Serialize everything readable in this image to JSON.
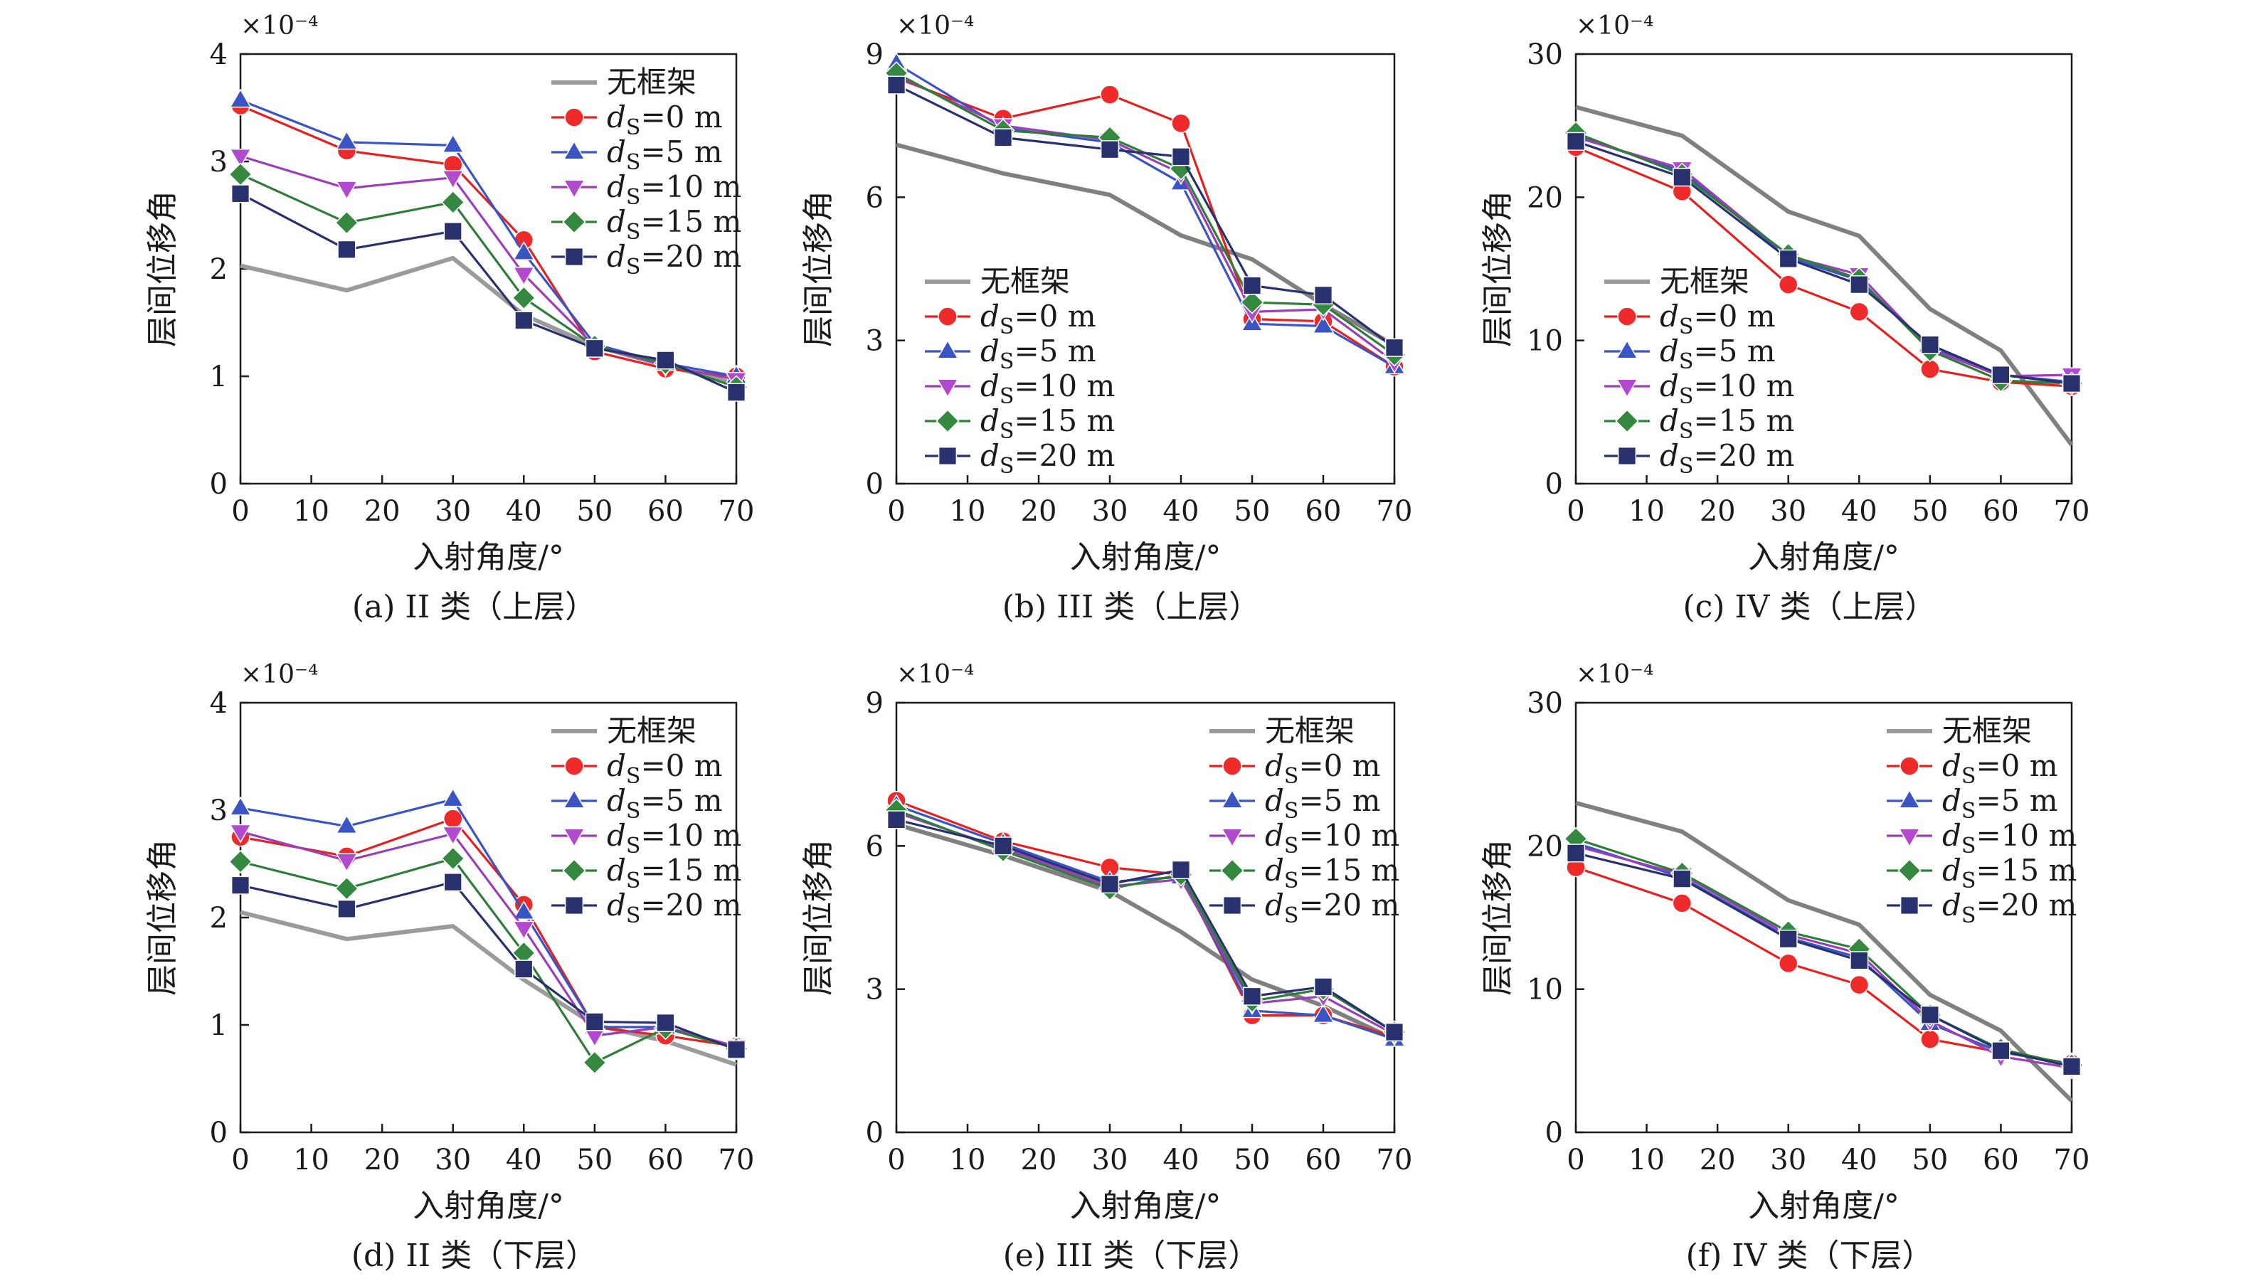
{
  "figure": {
    "xlabel": "入射角度/°",
    "ylabel": "层间位移角",
    "exponent": "×10⁻⁴",
    "legend_labels": [
      "无框架",
      "d_S=0 m",
      "d_S=5 m",
      "d_S=10 m",
      "d_S=15 m",
      "d_S=20 m"
    ]
  },
  "chart_data": [
    {
      "type": "line",
      "caption": "(a)  II 类（上层）",
      "xlabel": "入射角度/°",
      "ylabel": "层间位移角",
      "exponent": "×10⁻⁴",
      "x": [
        0,
        15,
        30,
        40,
        50,
        60,
        70
      ],
      "xlim": [
        0,
        70
      ],
      "xticks": [
        0,
        10,
        20,
        30,
        40,
        50,
        60,
        70
      ],
      "ylim": [
        0,
        4
      ],
      "yticks": [
        0,
        1,
        2,
        3,
        4
      ],
      "legend_position": "top-right",
      "grid": false,
      "series": [
        {
          "name": "无框架",
          "values": [
            2.03,
            1.8,
            2.1,
            1.57,
            1.28,
            1.1,
            0.93
          ]
        },
        {
          "name": "d_S=0 m",
          "values": [
            3.52,
            3.1,
            2.97,
            2.27,
            1.23,
            1.07,
            1.0
          ]
        },
        {
          "name": "d_S=5 m",
          "values": [
            3.57,
            3.18,
            3.15,
            2.15,
            1.3,
            1.12,
            1.0
          ]
        },
        {
          "name": "d_S=10 m",
          "values": [
            3.05,
            2.75,
            2.85,
            1.95,
            1.28,
            1.1,
            0.97
          ]
        },
        {
          "name": "d_S=15 m",
          "values": [
            2.88,
            2.43,
            2.62,
            1.73,
            1.28,
            1.12,
            0.9
          ]
        },
        {
          "name": "d_S=20 m",
          "values": [
            2.7,
            2.18,
            2.35,
            1.52,
            1.26,
            1.15,
            0.85
          ]
        }
      ]
    },
    {
      "type": "line",
      "caption": "(b)  III 类（上层）",
      "xlabel": "入射角度/°",
      "ylabel": "层间位移角",
      "exponent": "×10⁻⁴",
      "x": [
        0,
        15,
        30,
        40,
        50,
        60,
        70
      ],
      "xlim": [
        0,
        70
      ],
      "xticks": [
        0,
        10,
        20,
        30,
        40,
        50,
        60,
        70
      ],
      "ylim": [
        0,
        9
      ],
      "yticks": [
        0,
        3,
        6,
        9
      ],
      "legend_position": "center-left",
      "grid": false,
      "series": [
        {
          "name": "无框架",
          "values": [
            7.1,
            6.5,
            6.05,
            5.2,
            4.7,
            3.75,
            2.9
          ]
        },
        {
          "name": "d_S=0 m",
          "values": [
            8.5,
            7.65,
            8.15,
            7.55,
            3.45,
            3.4,
            2.45
          ]
        },
        {
          "name": "d_S=5 m",
          "values": [
            8.8,
            7.45,
            7.15,
            6.3,
            3.35,
            3.3,
            2.45
          ]
        },
        {
          "name": "d_S=10 m",
          "values": [
            8.55,
            7.5,
            7.2,
            6.5,
            3.6,
            3.65,
            2.55
          ]
        },
        {
          "name": "d_S=15 m",
          "values": [
            8.6,
            7.4,
            7.25,
            6.6,
            3.8,
            3.75,
            2.7
          ]
        },
        {
          "name": "d_S=20 m",
          "values": [
            8.35,
            7.25,
            7.0,
            6.85,
            4.15,
            3.95,
            2.85
          ]
        }
      ]
    },
    {
      "type": "line",
      "caption": "(c)  IV 类（上层）",
      "xlabel": "入射角度/°",
      "ylabel": "层间位移角",
      "exponent": "×10⁻⁴",
      "x": [
        0,
        15,
        30,
        40,
        50,
        60,
        70
      ],
      "xlim": [
        0,
        70
      ],
      "xticks": [
        0,
        10,
        20,
        30,
        40,
        50,
        60,
        70
      ],
      "ylim": [
        0,
        30
      ],
      "yticks": [
        0,
        10,
        20,
        30
      ],
      "legend_position": "center-left",
      "grid": false,
      "series": [
        {
          "name": "无框架",
          "values": [
            26.3,
            24.3,
            19.0,
            17.3,
            12.2,
            9.3,
            2.7
          ]
        },
        {
          "name": "d_S=0 m",
          "values": [
            23.5,
            20.4,
            13.9,
            12.0,
            8.0,
            7.1,
            6.8
          ]
        },
        {
          "name": "d_S=5 m",
          "values": [
            24.3,
            21.8,
            15.8,
            14.2,
            9.5,
            7.6,
            7.1
          ]
        },
        {
          "name": "d_S=10 m",
          "values": [
            24.2,
            22.0,
            15.9,
            14.6,
            9.4,
            7.5,
            7.6
          ]
        },
        {
          "name": "d_S=15 m",
          "values": [
            24.5,
            21.6,
            16.0,
            14.3,
            9.3,
            7.2,
            7.0
          ]
        },
        {
          "name": "d_S=20 m",
          "values": [
            23.9,
            21.4,
            15.7,
            13.9,
            9.7,
            7.6,
            7.0
          ]
        }
      ]
    },
    {
      "type": "line",
      "caption": "(d)  II 类（下层）",
      "xlabel": "入射角度/°",
      "ylabel": "层间位移角",
      "exponent": "×10⁻⁴",
      "x": [
        0,
        15,
        30,
        40,
        50,
        60,
        70
      ],
      "xlim": [
        0,
        70
      ],
      "xticks": [
        0,
        10,
        20,
        30,
        40,
        50,
        60,
        70
      ],
      "ylim": [
        0,
        4
      ],
      "yticks": [
        0,
        1,
        2,
        3,
        4
      ],
      "legend_position": "top-right",
      "grid": false,
      "series": [
        {
          "name": "无框架",
          "values": [
            2.05,
            1.8,
            1.92,
            1.42,
            1.0,
            0.85,
            0.63
          ]
        },
        {
          "name": "d_S=0 m",
          "values": [
            2.75,
            2.57,
            2.92,
            2.12,
            0.98,
            0.9,
            0.8
          ]
        },
        {
          "name": "d_S=5 m",
          "values": [
            3.02,
            2.85,
            3.1,
            2.05,
            0.98,
            0.98,
            0.78
          ]
        },
        {
          "name": "d_S=10 m",
          "values": [
            2.8,
            2.53,
            2.78,
            1.9,
            0.9,
            0.98,
            0.8
          ]
        },
        {
          "name": "d_S=15 m",
          "values": [
            2.52,
            2.27,
            2.55,
            1.67,
            0.65,
            0.97,
            0.78
          ]
        },
        {
          "name": "d_S=20 m",
          "values": [
            2.3,
            2.08,
            2.33,
            1.52,
            1.03,
            1.02,
            0.77
          ]
        }
      ]
    },
    {
      "type": "line",
      "caption": "(e)  III 类（下层）",
      "xlabel": "入射角度/°",
      "ylabel": "层间位移角",
      "exponent": "×10⁻⁴",
      "x": [
        0,
        15,
        30,
        40,
        50,
        60,
        70
      ],
      "xlim": [
        0,
        70
      ],
      "xticks": [
        0,
        10,
        20,
        30,
        40,
        50,
        60,
        70
      ],
      "ylim": [
        0,
        9
      ],
      "yticks": [
        0,
        3,
        6,
        9
      ],
      "legend_position": "top-right",
      "grid": false,
      "series": [
        {
          "name": "无框架",
          "values": [
            6.45,
            5.8,
            5.05,
            4.2,
            3.2,
            2.65,
            1.95
          ]
        },
        {
          "name": "d_S=0 m",
          "values": [
            6.95,
            6.1,
            5.55,
            5.4,
            2.45,
            2.45,
            2.0
          ]
        },
        {
          "name": "d_S=5 m",
          "values": [
            6.85,
            6.05,
            5.25,
            5.35,
            2.55,
            2.45,
            1.95
          ]
        },
        {
          "name": "d_S=10 m",
          "values": [
            6.7,
            5.95,
            5.15,
            5.3,
            2.7,
            2.85,
            2.05
          ]
        },
        {
          "name": "d_S=15 m",
          "values": [
            6.75,
            5.9,
            5.1,
            5.4,
            2.75,
            3.0,
            2.1
          ]
        },
        {
          "name": "d_S=20 m",
          "values": [
            6.55,
            6.0,
            5.2,
            5.5,
            2.85,
            3.05,
            2.1
          ]
        }
      ]
    },
    {
      "type": "line",
      "caption": "(f)  IV 类（下层）",
      "xlabel": "入射角度/°",
      "ylabel": "层间位移角",
      "exponent": "×10⁻⁴",
      "x": [
        0,
        15,
        30,
        40,
        50,
        60,
        70
      ],
      "xlim": [
        0,
        70
      ],
      "xticks": [
        0,
        10,
        20,
        30,
        40,
        50,
        60,
        70
      ],
      "ylim": [
        0,
        30
      ],
      "yticks": [
        0,
        10,
        20,
        30
      ],
      "legend_position": "top-right",
      "grid": false,
      "series": [
        {
          "name": "无框架",
          "values": [
            23.0,
            21.0,
            16.2,
            14.5,
            9.6,
            7.1,
            2.2
          ]
        },
        {
          "name": "d_S=0 m",
          "values": [
            18.5,
            16.0,
            11.8,
            10.3,
            6.5,
            5.6,
            4.8
          ]
        },
        {
          "name": "d_S=5 m",
          "values": [
            20.2,
            17.8,
            13.6,
            12.2,
            7.6,
            5.6,
            4.8
          ]
        },
        {
          "name": "d_S=10 m",
          "values": [
            20.0,
            18.0,
            13.8,
            12.5,
            7.8,
            5.3,
            4.5
          ]
        },
        {
          "name": "d_S=15 m",
          "values": [
            20.5,
            18.1,
            14.0,
            12.8,
            8.2,
            5.8,
            4.7
          ]
        },
        {
          "name": "d_S=20 m",
          "values": [
            19.5,
            17.7,
            13.5,
            12.0,
            8.2,
            5.7,
            4.6
          ]
        }
      ]
    }
  ],
  "styles": {
    "series": [
      {
        "color": "#9b9b9b",
        "marker": "none",
        "line_color": "#9b9b9b",
        "line_width": 6
      },
      {
        "color": "#ee2a2a",
        "marker": "circle",
        "line_color": "#e52020",
        "line_width": 3.2
      },
      {
        "color": "#3a54c4",
        "marker": "triangle-up",
        "line_color": "#3a54c4",
        "line_width": 3.2
      },
      {
        "color": "#b24ad0",
        "marker": "triangle-down",
        "line_color": "#9b3fb8",
        "line_width": 3.2
      },
      {
        "color": "#35883f",
        "marker": "diamond",
        "line_color": "#2f7d38",
        "line_width": 3.2
      },
      {
        "color": "#29306e",
        "marker": "square",
        "line_color": "#29306e",
        "line_width": 3.2
      }
    ],
    "gray_line_color_upper_bc": "#808080"
  }
}
